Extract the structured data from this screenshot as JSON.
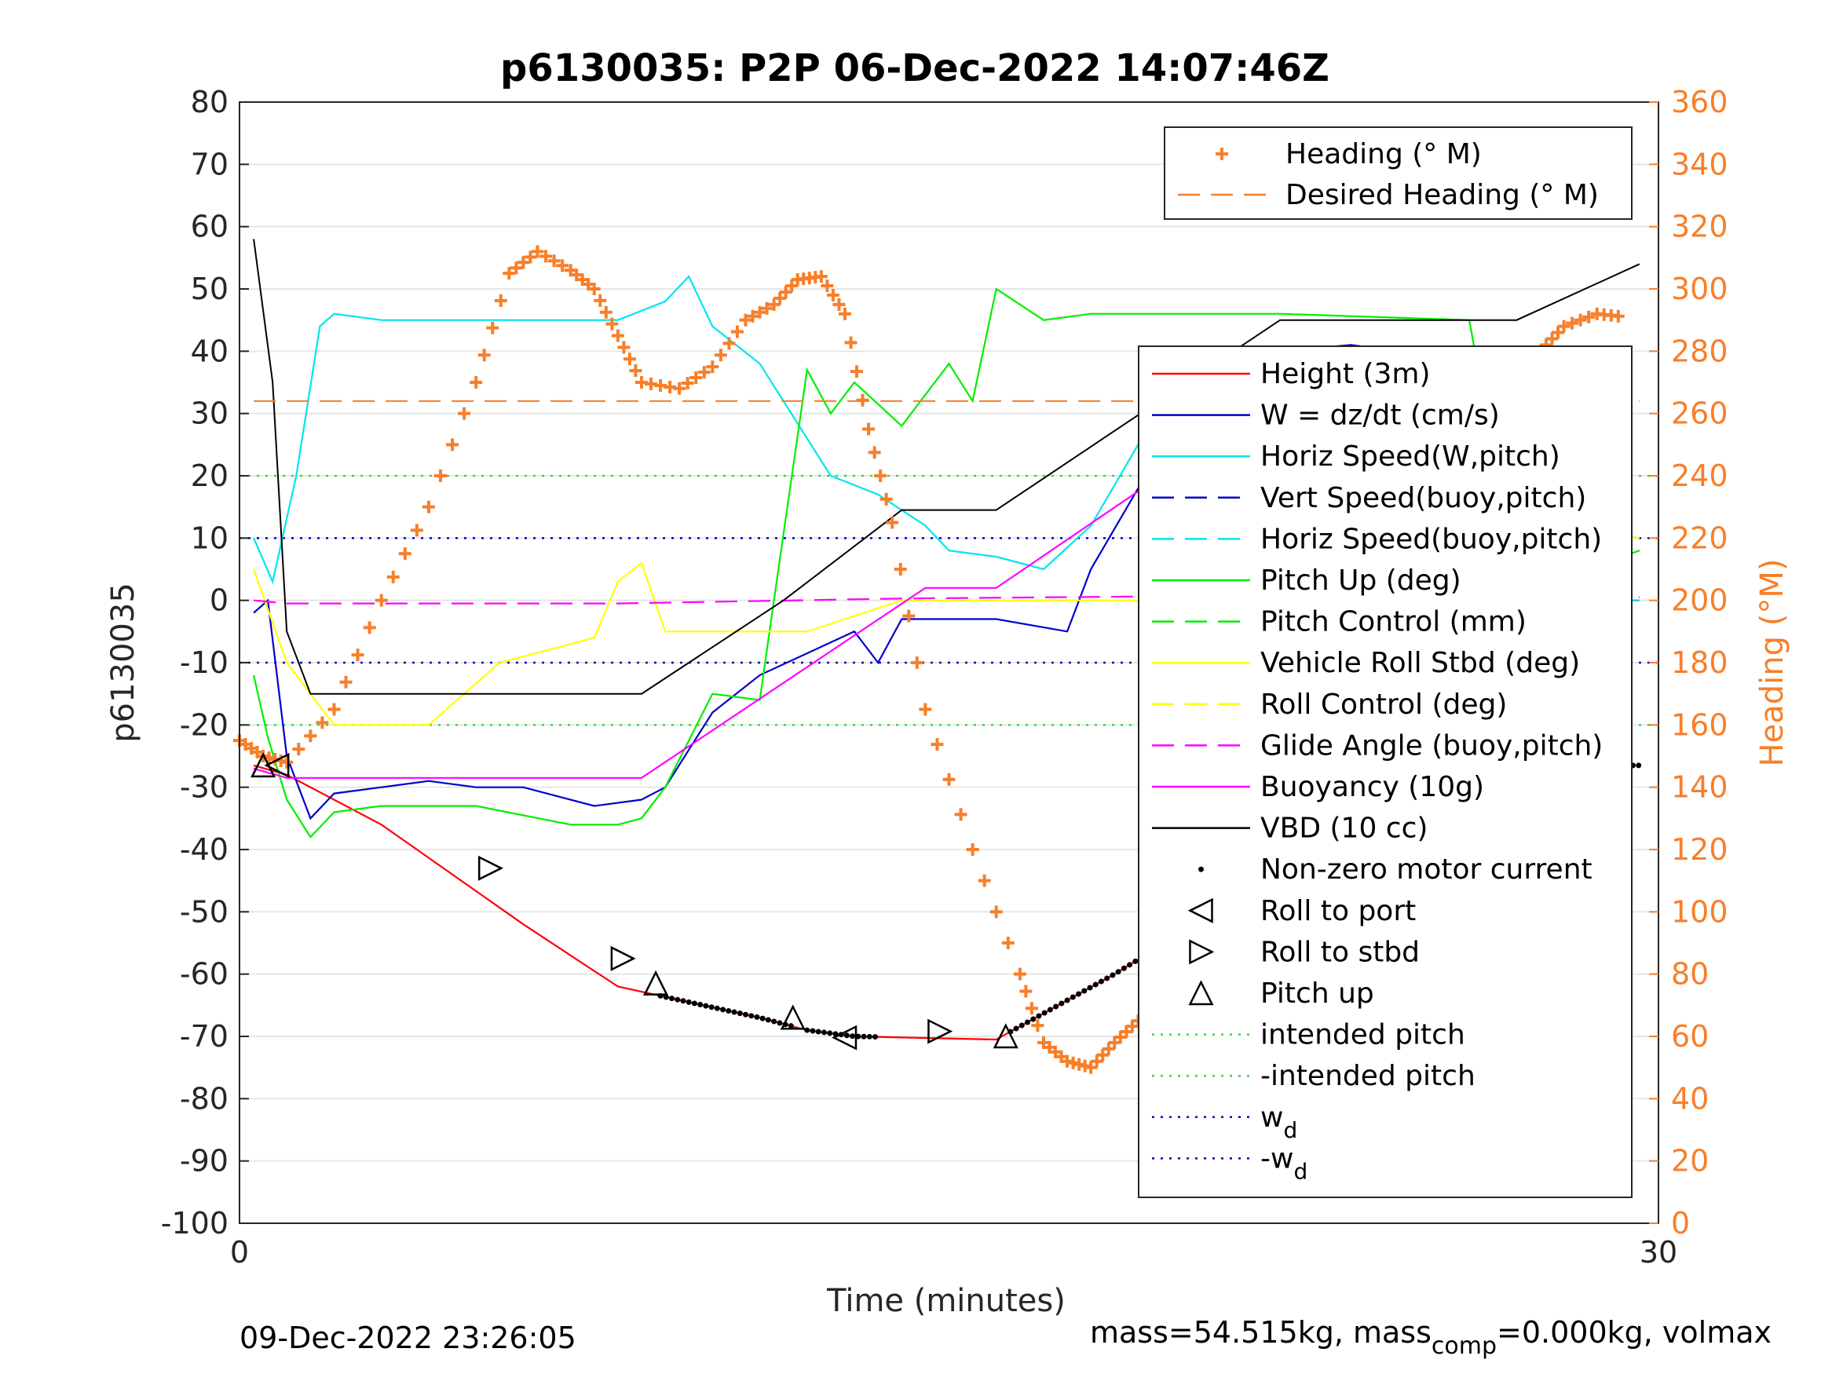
{
  "chart_data": {
    "type": "line",
    "title": "p6130035: P2P 06-Dec-2022 14:07:46Z",
    "xlabel": "Time (minutes)",
    "ylabel": "p6130035",
    "y2label": "Heading (°M)",
    "xlim": [
      0,
      30
    ],
    "ylim": [
      -100,
      80
    ],
    "y2lim": [
      0,
      360
    ],
    "x_ticks": [
      "0",
      "30"
    ],
    "y_ticks": [
      "80",
      "70",
      "60",
      "50",
      "40",
      "30",
      "20",
      "10",
      "0",
      "-10",
      "-20",
      "-30",
      "-40",
      "-50",
      "-60",
      "-70",
      "-80",
      "-90",
      "-100"
    ],
    "y2_ticks": [
      "360",
      "340",
      "320",
      "300",
      "280",
      "260",
      "240",
      "220",
      "200",
      "180",
      "160",
      "140",
      "120",
      "100",
      "80",
      "60",
      "40",
      "20",
      "0"
    ],
    "grid": true,
    "footer_left": "09-Dec-2022 23:26:05",
    "footer_right": {
      "a": "mass=54.515kg, mass",
      "sub": "comp",
      "b": "=0.000kg, volmax"
    },
    "legend_top": [
      {
        "label": "Heading (° M)",
        "color": "#f77f2a",
        "style": "plus"
      },
      {
        "label": "Desired Heading (° M)",
        "color": "#f77f2a",
        "style": "dash"
      }
    ],
    "legend_right": [
      {
        "label": "Height (3m)",
        "color": "#ff0000",
        "style": "solid"
      },
      {
        "label": "W = dz/dt (cm/s)",
        "color": "#0000cc",
        "style": "solid"
      },
      {
        "label": "Horiz Speed(W,pitch)",
        "color": "#00e5ee",
        "style": "solid"
      },
      {
        "label": "Vert Speed(buoy,pitch)",
        "color": "#0000cc",
        "style": "dash"
      },
      {
        "label": "Horiz Speed(buoy,pitch)",
        "color": "#00e5ee",
        "style": "dash"
      },
      {
        "label": "Pitch Up (deg)",
        "color": "#00ee00",
        "style": "solid"
      },
      {
        "label": "Pitch Control (mm)",
        "color": "#00ee00",
        "style": "dash"
      },
      {
        "label": "Vehicle Roll Stbd (deg)",
        "color": "#ffff00",
        "style": "solid"
      },
      {
        "label": "Roll Control (deg)",
        "color": "#ffff00",
        "style": "dash"
      },
      {
        "label": "Glide Angle (buoy,pitch)",
        "color": "#ff00ff",
        "style": "dash"
      },
      {
        "label": "Buoyancy (10g)",
        "color": "#ff00ff",
        "style": "solid"
      },
      {
        "label": "VBD (10 cc)",
        "color": "#000000",
        "style": "solid"
      },
      {
        "label": "Non-zero motor current",
        "color": "#000000",
        "style": "dot"
      },
      {
        "label": "Roll to port",
        "color": "#000000",
        "style": "tri-left"
      },
      {
        "label": "Roll to stbd",
        "color": "#000000",
        "style": "tri-right"
      },
      {
        "label": "Pitch up",
        "color": "#000000",
        "style": "tri-up"
      },
      {
        "label": "intended pitch",
        "color": "#33dd33",
        "style": "dotted"
      },
      {
        "label": "-intended pitch",
        "color": "#33dd33",
        "style": "dotted"
      },
      {
        "label": "w",
        "sub": "d",
        "color": "#0000cc",
        "style": "dotted"
      },
      {
        "label": "-w",
        "sub": "d",
        "color": "#0000cc",
        "style": "dotted"
      }
    ],
    "series": [
      {
        "name": "Height (3m)",
        "axis": "left",
        "color": "#ff0000",
        "style": "solid",
        "x": [
          0.3,
          1.0,
          3.0,
          6.0,
          8.0,
          11.0,
          12.0,
          13.0,
          16.0,
          18.5,
          20.0,
          21.5,
          23.5,
          26.0,
          28.5
        ],
        "y": [
          -26.5,
          -28,
          -36,
          -52,
          -62,
          -67,
          -69,
          -70,
          -70.5,
          -60,
          -53,
          -42,
          -30,
          -26.5,
          -26.5
        ]
      },
      {
        "name": "W = dz/dt (cm/s)",
        "axis": "left",
        "color": "#0000cc",
        "style": "solid",
        "x": [
          0.3,
          0.6,
          1.0,
          1.5,
          2.0,
          3.0,
          4.0,
          5.0,
          6.0,
          7.5,
          8.5,
          9.0,
          10.0,
          11.0,
          13.0,
          13.5,
          14.0,
          16.0,
          17.5,
          18.0,
          19.0,
          20.0,
          22.0,
          23.5,
          24.5,
          26.0,
          27.0,
          28.5,
          29.6
        ],
        "y": [
          -2,
          0,
          -25,
          -35,
          -31,
          -30,
          -29,
          -30,
          -30,
          -33,
          -32,
          -30,
          -18,
          -12,
          -5,
          -10,
          -3,
          -3,
          -5,
          5,
          18,
          30,
          40,
          41,
          40,
          5,
          0,
          0,
          0
        ]
      },
      {
        "name": "Horiz Speed(W,pitch)",
        "axis": "left",
        "color": "#00e5ee",
        "style": "solid",
        "x": [
          0.3,
          0.7,
          1.2,
          1.7,
          2.0,
          3.0,
          4.0,
          6.0,
          8.0,
          9.0,
          9.5,
          10.0,
          11.0,
          12.0,
          12.5,
          13.5,
          14.5,
          15.0,
          16.0,
          17.0,
          18.0,
          19.0,
          20.0,
          22.0,
          24.5,
          26.0,
          27.0,
          28.5,
          29.6
        ],
        "y": [
          10,
          3,
          20,
          44,
          46,
          45,
          45,
          45,
          45,
          48,
          52,
          44,
          38,
          26,
          20,
          17,
          12,
          8,
          7,
          5,
          12,
          25,
          30,
          38,
          38,
          3,
          0,
          0,
          0
        ]
      },
      {
        "name": "Pitch Up (deg)",
        "axis": "left",
        "color": "#00ee00",
        "style": "solid",
        "x": [
          0.3,
          0.6,
          1.0,
          1.5,
          2.0,
          3.0,
          5.0,
          7.0,
          8.0,
          8.5,
          9.0,
          10.0,
          11.0,
          11.3,
          12.0,
          12.5,
          13.0,
          14.0,
          15.0,
          15.5,
          16.0,
          17.0,
          18.0,
          22.0,
          26.0,
          27.0,
          28.5,
          29.6
        ],
        "y": [
          -12,
          -22,
          -32,
          -38,
          -34,
          -33,
          -33,
          -36,
          -36,
          -35,
          -30,
          -15,
          -16,
          0,
          37,
          30,
          35,
          28,
          38,
          32,
          50,
          45,
          46,
          46,
          45,
          3,
          5,
          8
        ]
      },
      {
        "name": "Vehicle Roll Stbd (deg)",
        "axis": "left",
        "color": "#ffff00",
        "style": "solid",
        "x": [
          0.3,
          1.0,
          2.0,
          3.0,
          4.0,
          5.5,
          7.5,
          8.0,
          8.5,
          9.0,
          10.0,
          12.0,
          14.0,
          16.0,
          18.0,
          20.0,
          22.0,
          23.0,
          24.5,
          25.5,
          26.5,
          28.0,
          29.6
        ],
        "y": [
          5,
          -10,
          -20,
          -20,
          -20,
          -10,
          -6,
          3,
          6,
          -5,
          -5,
          -5,
          0,
          0,
          0,
          0,
          0,
          3,
          0,
          0,
          12,
          12,
          10
        ]
      },
      {
        "name": "Buoyancy (10g)",
        "axis": "left",
        "color": "#ff00ff",
        "style": "solid",
        "x": [
          0.3,
          1.0,
          8.5,
          14.5,
          16.0,
          22.0,
          26.0,
          28.5
        ],
        "y": [
          -27,
          -28.5,
          -28.5,
          2,
          2,
          33,
          33,
          -29
        ]
      },
      {
        "name": "Glide Angle (buoy,pitch)",
        "axis": "left",
        "color": "#ff00ff",
        "style": "dash",
        "x": [
          0.3,
          1.0,
          8.0,
          14.0,
          22.0,
          26.0,
          29.6
        ],
        "y": [
          0,
          -0.5,
          -0.5,
          0.3,
          0.8,
          0.8,
          0.5
        ]
      },
      {
        "name": "VBD (10 cc)",
        "axis": "left",
        "color": "#000000",
        "style": "solid",
        "x": [
          0.3,
          0.7,
          1.0,
          1.5,
          8.5,
          11.5,
          14.0,
          16.0,
          22.0,
          27.0,
          29.6
        ],
        "y": [
          58,
          35,
          -5,
          -15,
          -15,
          0,
          14.5,
          14.5,
          45,
          45,
          54
        ]
      },
      {
        "name": "Heading (° M)",
        "axis": "right",
        "color": "#f77f2a",
        "style": "plus",
        "x": [
          0.0,
          0.5,
          1.0,
          2.0,
          3.0,
          4.0,
          5.0,
          5.7,
          6.3,
          7.0,
          7.5,
          8.0,
          8.5,
          9.3,
          10.0,
          10.7,
          11.3,
          11.8,
          12.3,
          12.8,
          13.3,
          13.8,
          14.5,
          15.5,
          16.5,
          17.0,
          17.5,
          18.0,
          18.5,
          19.0,
          20.0,
          21.0,
          22.0,
          23.0,
          24.0,
          25.0,
          26.0,
          27.0,
          27.5,
          28.0,
          28.7,
          29.3
        ],
        "y": [
          155,
          150,
          148,
          165,
          200,
          230,
          270,
          305,
          312,
          306,
          300,
          285,
          270,
          268,
          275,
          290,
          295,
          303,
          304,
          292,
          255,
          225,
          165,
          120,
          80,
          58,
          52,
          50,
          58,
          65,
          72,
          80,
          90,
          110,
          145,
          175,
          210,
          245,
          280,
          288,
          292,
          291
        ]
      },
      {
        "name": "Desired Heading (° M)",
        "axis": "right",
        "color": "#f77f2a",
        "style": "dash",
        "x": [
          0.3,
          29.6
        ],
        "y": [
          264,
          264
        ]
      }
    ],
    "markers": {
      "roll_to_port": [
        [
          0.8,
          -26.5
        ],
        [
          12.8,
          -70.2
        ],
        [
          28.5,
          -26.2
        ]
      ],
      "roll_to_stbd": [
        [
          5.3,
          -43
        ],
        [
          8.1,
          -57.5
        ],
        [
          14.8,
          -69.2
        ],
        [
          25.6,
          -33.5
        ]
      ],
      "pitch_up": [
        [
          0.5,
          -26.5
        ],
        [
          8.8,
          -61.5
        ],
        [
          11.7,
          -67
        ],
        [
          16.2,
          -70
        ]
      ]
    },
    "motor_current_segments": [
      [
        8.9,
        11.7
      ],
      [
        12.0,
        13.5
      ],
      [
        16.3,
        22.0
      ],
      [
        28.5,
        29.6
      ]
    ],
    "reference_lines": {
      "intended_pitch": 20,
      "neg_intended_pitch": -20,
      "wd": 10,
      "neg_wd": -10
    }
  }
}
